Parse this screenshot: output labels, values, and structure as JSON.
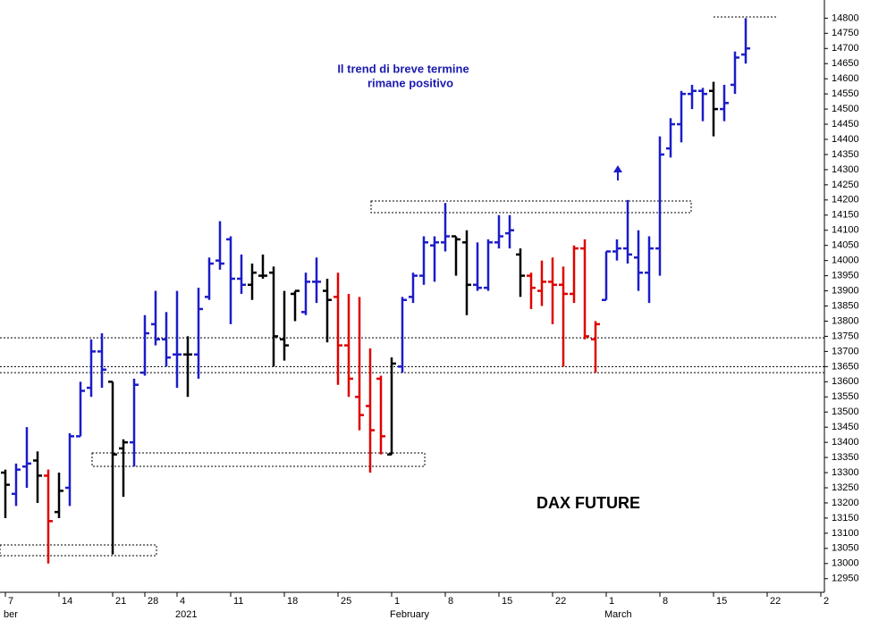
{
  "chart_data": {
    "type": "ohlc",
    "note": [
      "Il trend di breve termine",
      "rimane positivo"
    ],
    "label": "DAX FUTURE",
    "categories": [
      "7",
      null,
      null,
      null,
      null,
      "14",
      null,
      null,
      null,
      null,
      "21",
      null,
      null,
      "28",
      null,
      null,
      "4",
      null,
      null,
      null,
      null,
      "11",
      null,
      null,
      null,
      null,
      "18",
      null,
      null,
      null,
      null,
      "25",
      null,
      null,
      null,
      null,
      "1",
      null,
      null,
      null,
      null,
      "8",
      null,
      null,
      null,
      null,
      "15",
      null,
      null,
      null,
      null,
      "22",
      null,
      null,
      null,
      null,
      "1",
      null,
      null,
      null,
      null,
      "8",
      null,
      null,
      null,
      null,
      "15",
      null,
      null,
      null,
      null,
      "22",
      null,
      null,
      null,
      null,
      "2"
    ],
    "months": [
      "ber",
      null,
      null,
      null,
      null,
      null,
      null,
      null,
      null,
      null,
      null,
      null,
      null,
      null,
      null,
      null,
      "2021",
      null,
      null,
      null,
      null,
      null,
      null,
      null,
      null,
      null,
      null,
      null,
      null,
      null,
      null,
      null,
      null,
      null,
      null,
      null,
      "February",
      null,
      null,
      null,
      null,
      null,
      null,
      null,
      null,
      null,
      null,
      null,
      null,
      null,
      null,
      null,
      null,
      null,
      null,
      null,
      "March",
      null,
      null,
      null,
      null,
      null,
      null,
      null,
      null,
      null,
      null,
      null,
      null,
      null,
      null,
      null,
      null,
      null,
      null,
      null,
      null
    ],
    "open": [
      13300,
      13230,
      13320,
      13340,
      13290,
      13170,
      13250,
      13420,
      13580,
      13700,
      13600,
      13380,
      13400,
      13630,
      13790,
      13740,
      13690,
      13690,
      13690,
      13880,
      14000,
      14070,
      13940,
      13920,
      13950,
      13960,
      13740,
      13890,
      13830,
      13930,
      13900,
      13880,
      13720,
      13550,
      13520,
      13610,
      13360,
      13650,
      13880,
      13950,
      14050,
      14060,
      14080,
      14060,
      13920,
      13910,
      14060,
      14090,
      14020,
      13950,
      13900,
      13930,
      13920,
      13890,
      14040,
      13740,
      13870,
      14030,
      14040,
      14010,
      13960,
      14040,
      14370,
      14450,
      14550,
      14560,
      14560,
      14500,
      14580,
      14680,
      null,
      null,
      null,
      null,
      null,
      null,
      null
    ],
    "high": [
      13310,
      13330,
      13450,
      13370,
      13310,
      13300,
      13430,
      13600,
      13740,
      13760,
      13600,
      13410,
      13610,
      13820,
      13900,
      13830,
      13900,
      13750,
      13910,
      14010,
      14130,
      14080,
      14020,
      13990,
      14020,
      13980,
      13900,
      13900,
      13960,
      14010,
      13940,
      13960,
      13890,
      13880,
      13710,
      13620,
      13680,
      13880,
      13960,
      14080,
      14080,
      14190,
      14080,
      14100,
      14060,
      14070,
      14150,
      14150,
      14040,
      13960,
      14000,
      14010,
      13980,
      14050,
      14070,
      13800,
      14030,
      14070,
      14200,
      14100,
      14080,
      14410,
      14470,
      14560,
      14580,
      14570,
      14590,
      14580,
      14690,
      14800,
      null,
      null,
      null,
      null,
      null,
      null,
      null
    ],
    "low": [
      13150,
      13190,
      13250,
      13200,
      13000,
      13150,
      13190,
      13420,
      13550,
      13580,
      13030,
      13220,
      13320,
      13620,
      13720,
      13650,
      13580,
      13550,
      13610,
      13870,
      13970,
      13790,
      13890,
      13870,
      13940,
      13650,
      13670,
      13800,
      13820,
      13860,
      13730,
      13590,
      13550,
      13440,
      13300,
      13360,
      13360,
      13630,
      13860,
      13920,
      13930,
      14030,
      13950,
      13820,
      13900,
      13900,
      14040,
      14040,
      13880,
      13840,
      13850,
      13790,
      13650,
      13860,
      13740,
      13630,
      13870,
      14000,
      13990,
      13900,
      13860,
      13950,
      14340,
      14390,
      14500,
      14460,
      14410,
      14460,
      14550,
      14650,
      null,
      null,
      null,
      null,
      null,
      null,
      null
    ],
    "close": [
      13260,
      13310,
      13330,
      13290,
      13140,
      13240,
      13420,
      13570,
      13700,
      13640,
      13360,
      13400,
      13590,
      13760,
      13740,
      13680,
      13690,
      13690,
      13840,
      13990,
      13990,
      13940,
      13920,
      13960,
      13950,
      13750,
      13720,
      13900,
      13930,
      13930,
      13870,
      13720,
      13610,
      13490,
      13440,
      13420,
      13660,
      13870,
      13950,
      14060,
      14060,
      14080,
      14070,
      13920,
      13910,
      14060,
      14080,
      14100,
      13950,
      13910,
      13930,
      13920,
      13890,
      14040,
      13750,
      13790,
      14030,
      14040,
      14020,
      13960,
      14040,
      14350,
      14450,
      14550,
      14560,
      14550,
      14500,
      14520,
      14670,
      14700,
      null,
      null,
      null,
      null,
      null,
      null,
      null
    ],
    "bar_colors": [
      "#000000",
      "#1c1cc8",
      "#1c1cc8",
      "#000000",
      "#e00000",
      "#000000",
      "#1c1cc8",
      "#1c1cc8",
      "#1c1cc8",
      "#1c1cc8",
      "#000000",
      "#000000",
      "#1c1cc8",
      "#1c1cc8",
      "#1c1cc8",
      "#1c1cc8",
      "#1c1cc8",
      "#000000",
      "#1c1cc8",
      "#1c1cc8",
      "#1c1cc8",
      "#1c1cc8",
      "#1c1cc8",
      "#000000",
      "#000000",
      "#000000",
      "#000000",
      "#000000",
      "#1c1cc8",
      "#1c1cc8",
      "#000000",
      "#e00000",
      "#e00000",
      "#e00000",
      "#e00000",
      "#e00000",
      "#000000",
      "#1c1cc8",
      "#1c1cc8",
      "#1c1cc8",
      "#1c1cc8",
      "#1c1cc8",
      "#000000",
      "#000000",
      "#1c1cc8",
      "#1c1cc8",
      "#1c1cc8",
      "#1c1cc8",
      "#000000",
      "#e00000",
      "#e00000",
      "#e00000",
      "#e00000",
      "#e00000",
      "#e00000",
      "#e00000",
      "#1c1cc8",
      "#1c1cc8",
      "#1c1cc8",
      "#1c1cc8",
      "#1c1cc8",
      "#1c1cc8",
      "#1c1cc8",
      "#1c1cc8",
      "#1c1cc8",
      "#1c1cc8",
      "#000000",
      "#1c1cc8",
      "#1c1cc8",
      "#1c1cc8",
      null,
      null,
      null,
      null,
      null,
      null,
      null
    ],
    "levels": [
      13745,
      13650,
      13630
    ],
    "ylim": [
      12905,
      14860
    ],
    "yticks": [
      12950,
      13000,
      13050,
      13100,
      13150,
      13200,
      13250,
      13300,
      13350,
      13400,
      13450,
      13500,
      13550,
      13600,
      13650,
      13700,
      13750,
      13800,
      13850,
      13900,
      13950,
      14000,
      14050,
      14100,
      14150,
      14200,
      14250,
      14300,
      14350,
      14400,
      14450,
      14500,
      14550,
      14600,
      14650,
      14700,
      14750,
      14800
    ]
  }
}
